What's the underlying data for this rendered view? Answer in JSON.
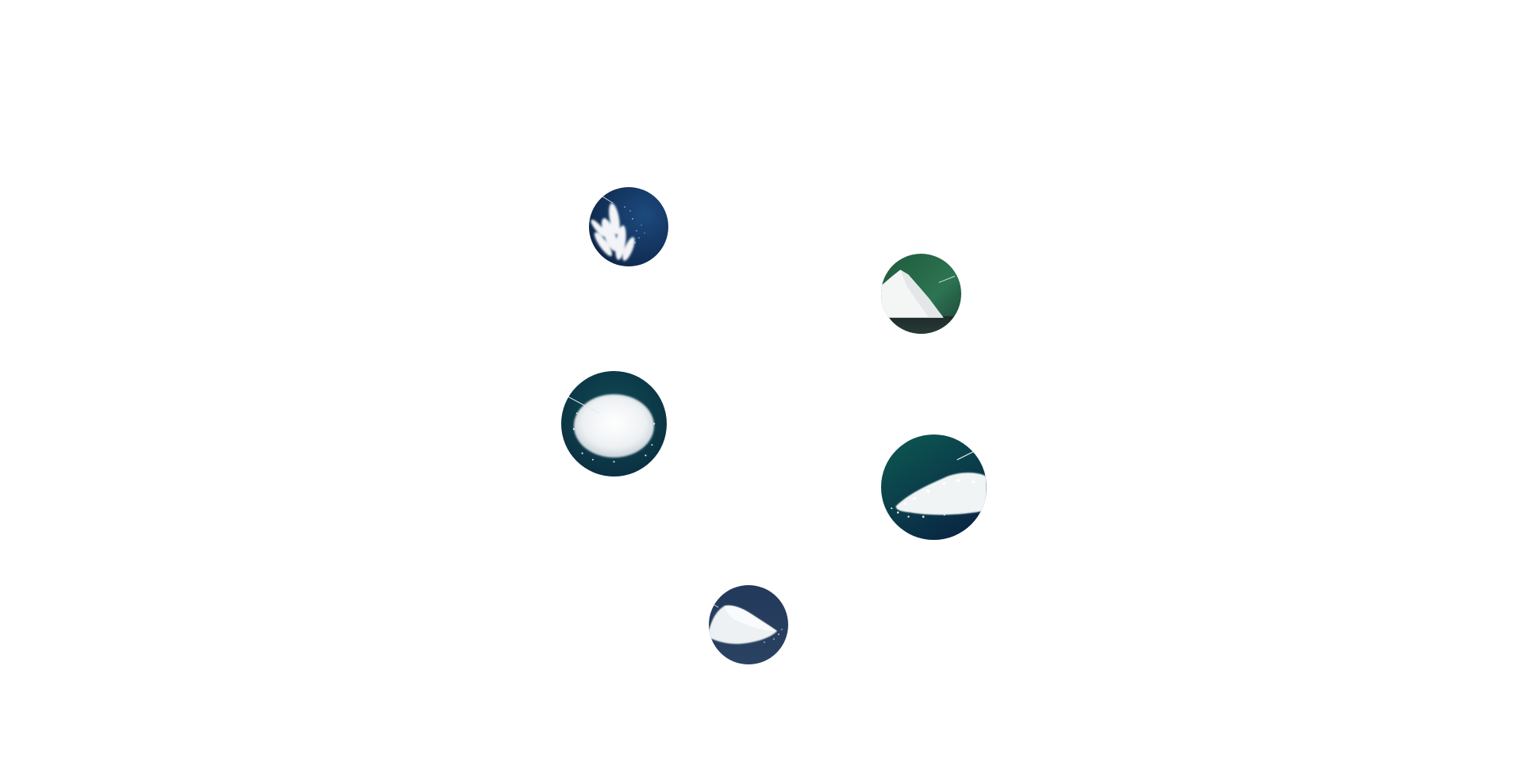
{
  "products": [
    {
      "id": "spray",
      "icon": "powder-spray-icon",
      "bg_from": "#0d2447",
      "bg_to": "#1c4a7e"
    },
    {
      "id": "peak",
      "icon": "powder-peak-icon",
      "bg_from": "#1f5a3a",
      "bg_to": "#2f7a55"
    },
    {
      "id": "mound",
      "icon": "powder-mound-icon",
      "bg_from": "#0a3a45",
      "bg_to": "#0d2f43"
    },
    {
      "id": "coarse",
      "icon": "coarse-crystal-icon",
      "bg_from": "#0c5a52",
      "bg_to": "#0a2a45"
    },
    {
      "id": "pile",
      "icon": "powder-pile-icon",
      "bg_from": "#22385a",
      "bg_to": "#2c4468"
    }
  ]
}
